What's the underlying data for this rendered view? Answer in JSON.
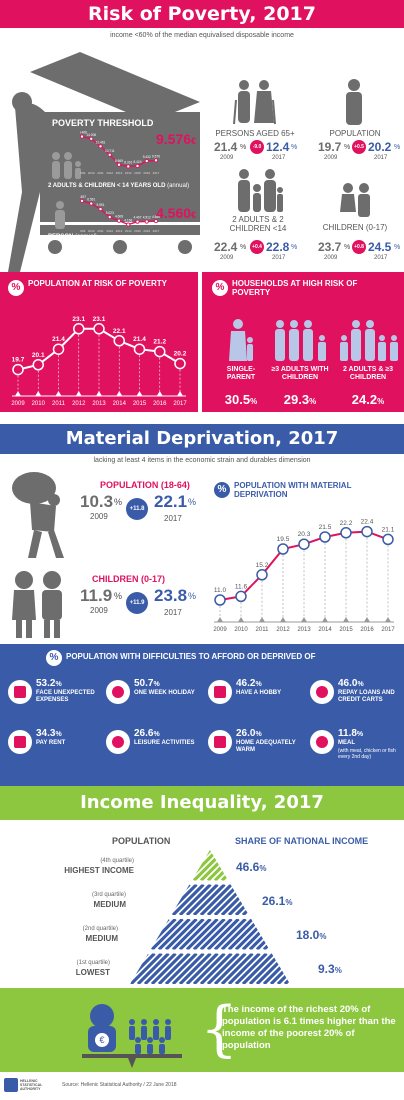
{
  "s1": {
    "title": "Risk of Poverty, 2017",
    "subtitle": "income <60% of the median equivalised disposable income",
    "threshold_title": "POVERTY THRESHOLD",
    "family_label": "2 ADULTS & CHILDREN < 14 YEARS OLD",
    "family_unit": "(annual)",
    "family_value": "9.576",
    "person_label": "PERSON",
    "person_unit": "(annual)",
    "person_value": "4.560",
    "currency": "€",
    "stats": [
      {
        "label": "PERSONS AGED 65+",
        "v2009": "21.4",
        "y2009": "2009",
        "change": "-9.0",
        "v2017": "12.4",
        "y2017": "2017"
      },
      {
        "label": "POPULATION",
        "v2009": "19.7",
        "y2009": "2009",
        "change": "+0.5",
        "v2017": "20.2",
        "y2017": "2017"
      },
      {
        "label": "2 ADULTS & 2 CHILDREN <14",
        "v2009": "22.4",
        "y2009": "2009",
        "change": "+0.4",
        "v2017": "22.8",
        "y2017": "2017"
      },
      {
        "label": "CHILDREN (0-17)",
        "v2009": "23.7",
        "y2009": "2009",
        "change": "+0.8",
        "v2017": "24.5",
        "y2017": "2017"
      }
    ],
    "pct": "%",
    "risk_title": "POPULATION AT RISK OF POVERTY",
    "households_title": "HOUSEHOLDS AT HIGH RISK OF POVERTY",
    "households": [
      {
        "label": "SINGLE-PARENT",
        "value": "30.5"
      },
      {
        "label": "≥3 ADULTS WITH CHILDREN",
        "value": "29.3"
      },
      {
        "label": "2 ADULTS & ≥3 CHILDREN",
        "value": "24.2"
      }
    ]
  },
  "s2": {
    "title": "Material Deprivation, 2017",
    "subtitle": "lacking at least 4 items in the economic strain and durables dimension",
    "pop_label": "POPULATION (18-64)",
    "pop_v2009": "10.3",
    "pop_y2009": "2009",
    "pop_change": "+11.8",
    "pop_v2017": "22.1",
    "pop_y2017": "2017",
    "child_label": "CHILDREN (0-17)",
    "child_v2009": "11.9",
    "child_y2009": "2009",
    "child_change": "+11.9",
    "child_v2017": "23.8",
    "child_y2017": "2017",
    "chart_title": "POPULATION WITH MATERIAL DEPRIVATION",
    "difficulties_title": "POPULATION WITH DIFFICULTIES TO AFFORD OR DEPRIVED OF",
    "items": [
      {
        "value": "53.2",
        "text": "FACE UNEXPECTED EXPENSES",
        "icon": "warning-icon"
      },
      {
        "value": "50.7",
        "text": "ONE WEEK HOLIDAY",
        "icon": "beach-umbrella-icon"
      },
      {
        "value": "46.2",
        "text": "HAVE A HOBBY",
        "icon": "bicycle-icon"
      },
      {
        "value": "46.0",
        "text": "REPAY LOANS AND CREDIT CARTS",
        "icon": "credit-card-icon"
      },
      {
        "value": "34.3",
        "text": "PAY RENT",
        "icon": "house-key-icon"
      },
      {
        "value": "26.6",
        "text": "LEISURE ACTIVITIES",
        "icon": "dancing-icon"
      },
      {
        "value": "26.0",
        "text": "HOME ADEQUATELY WARM",
        "icon": "radiator-icon"
      },
      {
        "value": "11.8",
        "text": "MEAL",
        "text2": "(with meat, chicken or fish every 2nd day)",
        "icon": "meal-icon"
      }
    ]
  },
  "s3": {
    "title": "Income Inequality, 2017",
    "pop_header": "POPULATION",
    "share_header": "SHARE OF NATIONAL INCOME",
    "rows": [
      {
        "q": "(4th quartile)",
        "name": "HIGHEST INCOME",
        "value": "46.6"
      },
      {
        "q": "(3rd quartile)",
        "name": "MEDIUM",
        "value": "26.1"
      },
      {
        "q": "(2nd quartile)",
        "name": "MEDIUM",
        "value": "18.0"
      },
      {
        "q": "(1st quartile)",
        "name": "LOWEST",
        "value": "9.3"
      }
    ],
    "statement": "The income of the richest 20% of population is 6.1 times higher than the income of the poorest 20% of population",
    "euro": "€"
  },
  "footer": {
    "logo_text": "HELLENIC STATISTICAL AUTHORITY",
    "source": "Source: Hellenic Statistical Authority / 22 June 2018"
  },
  "colors": {
    "pink": "#e0115f",
    "blue": "#3a5ca8",
    "green": "#8dc63f",
    "grey": "#6d6d6d"
  },
  "chart_data": [
    {
      "type": "line",
      "title": "POPULATION AT RISK OF POVERTY",
      "x": [
        "2009",
        "2010",
        "2011",
        "2012",
        "2013",
        "2014",
        "2015",
        "2016",
        "2017"
      ],
      "values": [
        19.7,
        20.1,
        21.4,
        23.1,
        23.1,
        22.1,
        21.4,
        21.2,
        20.2
      ],
      "labels": [
        "19.7",
        "20.1",
        "21.4",
        "23.1",
        "23.1",
        "22.1",
        "21.4",
        "21.2",
        "20.2"
      ],
      "ylim": [
        19,
        24
      ]
    },
    {
      "type": "line",
      "title": "POPULATION WITH MATERIAL DEPRIVATION",
      "x": [
        "2009",
        "2010",
        "2011",
        "2012",
        "2013",
        "2014",
        "2015",
        "2016",
        "2017"
      ],
      "values": [
        11.0,
        11.6,
        15.2,
        19.5,
        20.3,
        21.5,
        22.2,
        22.4,
        21.1
      ],
      "labels": [
        "11.0",
        "11.6",
        "15.2",
        "19.5",
        "20.3",
        "21.5",
        "22.2",
        "22.4",
        "21.1"
      ],
      "ylim": [
        10,
        24
      ]
    },
    {
      "type": "line",
      "title": "POVERTY THRESHOLD 2 ADULTS & CHILDREN < 14 YEARS OLD",
      "x": [
        "2009",
        "2010",
        "2011",
        "2012",
        "2013",
        "2014",
        "2015",
        "2016",
        "2017"
      ],
      "values": [
        14.466,
        14.006,
        12.461,
        10.711,
        8.669,
        8.316,
        8.424,
        9.432,
        9.576
      ],
      "labels": [
        "14.466",
        "14.006",
        "12.461",
        "10.711",
        "8.669",
        "8.316",
        "8.424",
        "9.432",
        "9.576"
      ]
    },
    {
      "type": "line",
      "title": "POVERTY THRESHOLD PERSON",
      "x": [
        "2009",
        "2010",
        "2011",
        "2012",
        "2013",
        "2014",
        "2015",
        "2016",
        "2017"
      ],
      "values": [
        6.897,
        6.591,
        5.951,
        5.023,
        4.608,
        4.168,
        4.497,
        4.512,
        4.56
      ],
      "labels": [
        "6.897",
        "6.591",
        "5.951",
        "5.023",
        "4.608",
        "4.168",
        "4.497",
        "4.512",
        "4.560"
      ]
    }
  ]
}
